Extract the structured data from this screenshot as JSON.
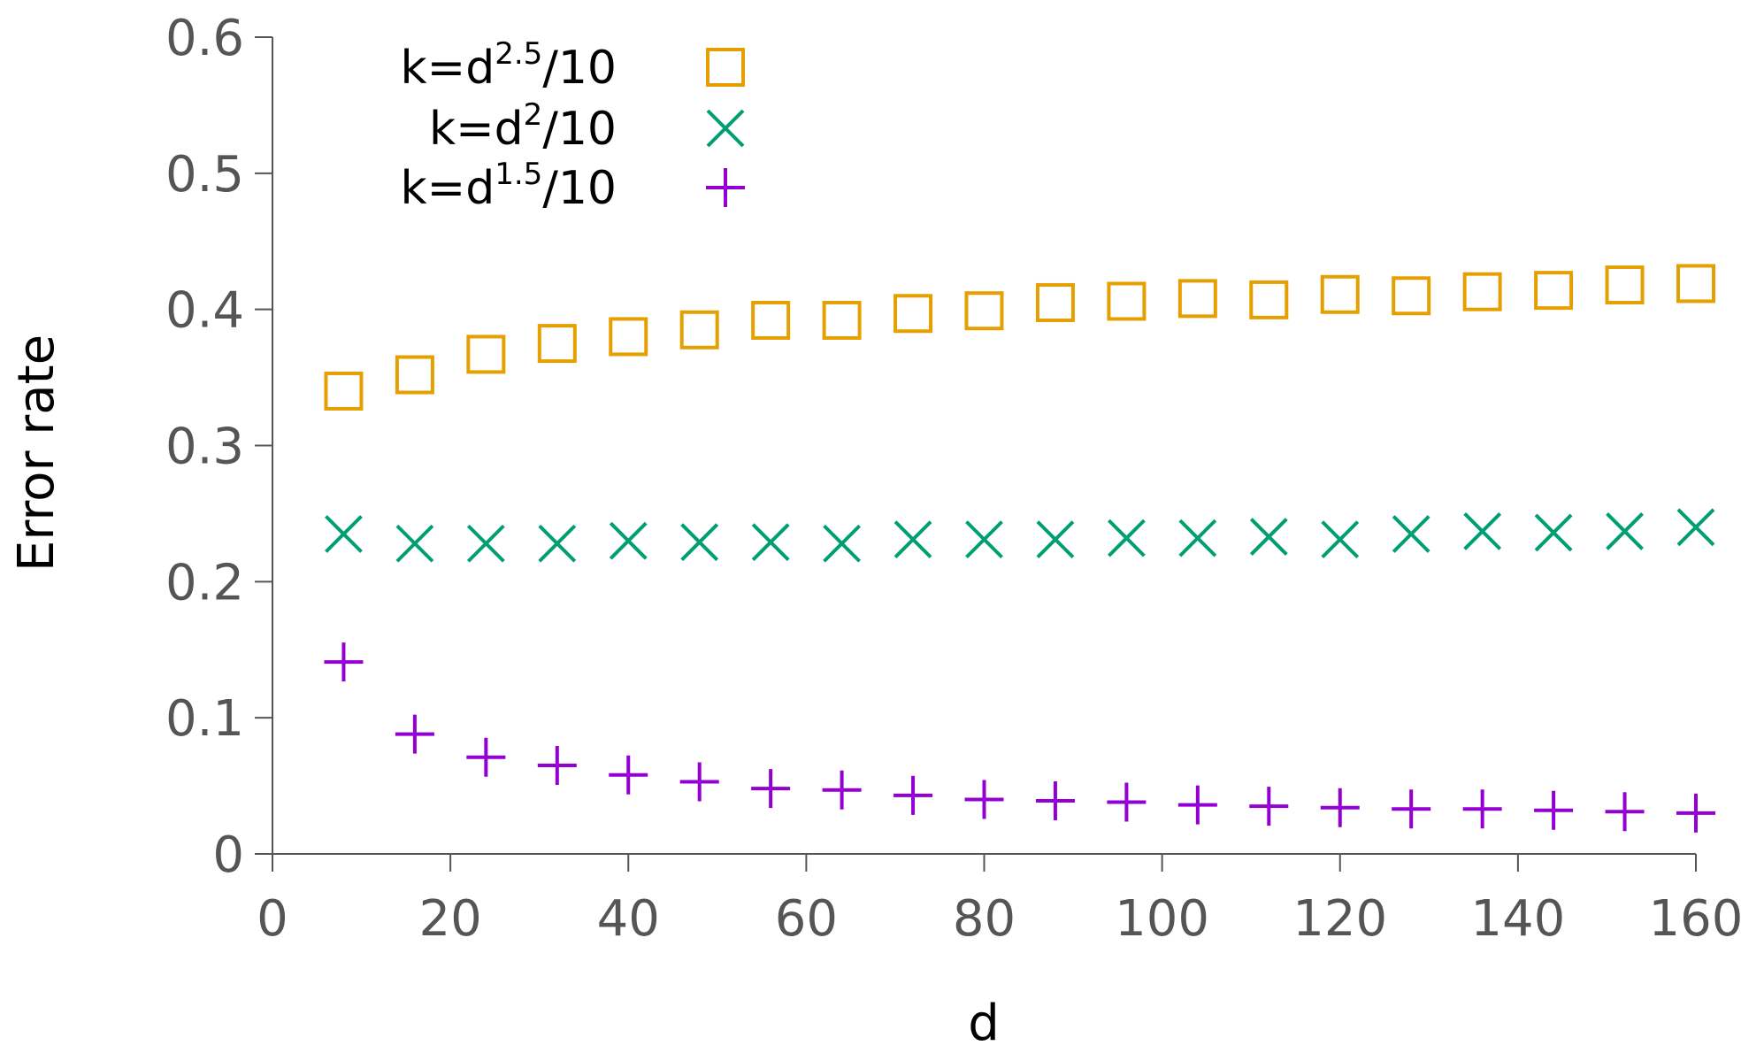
{
  "chart_data": {
    "type": "scatter",
    "xlabel": "d",
    "ylabel": "Error rate",
    "xlim": [
      0,
      160
    ],
    "ylim": [
      0,
      0.6
    ],
    "x_ticks": [
      "0",
      "20",
      "40",
      "60",
      "80",
      "100",
      "120",
      "140",
      "160"
    ],
    "y_ticks": [
      "0",
      "0.1",
      "0.2",
      "0.3",
      "0.4",
      "0.5",
      "0.6"
    ],
    "grid": false,
    "legend_position": "top-left",
    "x": [
      8,
      16,
      24,
      32,
      40,
      48,
      56,
      64,
      72,
      80,
      88,
      96,
      104,
      112,
      120,
      128,
      136,
      144,
      152,
      160
    ],
    "series": [
      {
        "name_base": "k=d",
        "name_exp": "2.5",
        "name_tail": "/10",
        "marker": "square",
        "color": "#E69F00",
        "values": [
          0.34,
          0.352,
          0.367,
          0.375,
          0.38,
          0.385,
          0.392,
          0.392,
          0.397,
          0.399,
          0.405,
          0.406,
          0.408,
          0.407,
          0.411,
          0.41,
          0.413,
          0.414,
          0.418,
          0.419
        ]
      },
      {
        "name_base": "k=d",
        "name_exp": "2",
        "name_tail": "/10",
        "marker": "x",
        "color": "#009E73",
        "values": [
          0.235,
          0.228,
          0.228,
          0.228,
          0.23,
          0.229,
          0.229,
          0.228,
          0.231,
          0.231,
          0.231,
          0.232,
          0.232,
          0.233,
          0.231,
          0.235,
          0.237,
          0.236,
          0.237,
          0.24
        ]
      },
      {
        "name_base": "k=d",
        "name_exp": "1.5",
        "name_tail": "/10",
        "marker": "plus",
        "color": "#9400D3",
        "values": [
          0.141,
          0.088,
          0.071,
          0.065,
          0.058,
          0.053,
          0.048,
          0.047,
          0.043,
          0.04,
          0.039,
          0.038,
          0.036,
          0.035,
          0.034,
          0.033,
          0.033,
          0.032,
          0.031,
          0.03
        ]
      }
    ]
  }
}
